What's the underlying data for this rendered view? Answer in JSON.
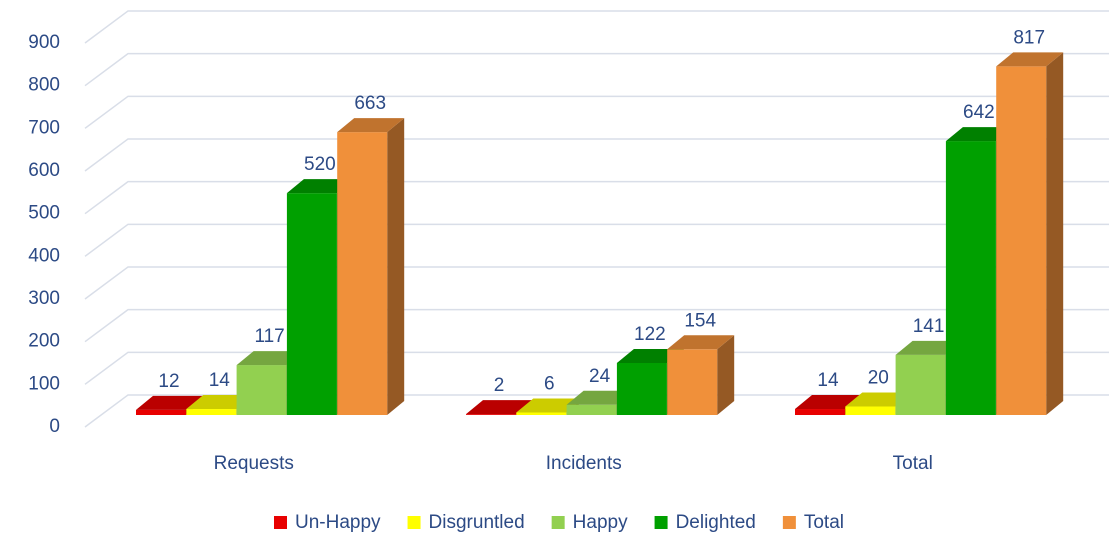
{
  "chart_data": {
    "type": "bar3d",
    "categories": [
      "Requests",
      "Incidents",
      "Total"
    ],
    "series": [
      {
        "name": "Un-Happy",
        "color": "#e80000",
        "values": [
          12,
          2,
          14
        ]
      },
      {
        "name": "Disgruntled",
        "color": "#ffff00",
        "values": [
          14,
          6,
          20
        ]
      },
      {
        "name": "Happy",
        "color": "#92d050",
        "values": [
          117,
          24,
          141
        ]
      },
      {
        "name": "Delighted",
        "color": "#00a000",
        "values": [
          520,
          122,
          642
        ]
      },
      {
        "name": "Total",
        "color": "#f0903a",
        "values": [
          663,
          154,
          817
        ]
      }
    ],
    "ylim": [
      0,
      900
    ],
    "yticks": [
      0,
      100,
      200,
      300,
      400,
      500,
      600,
      700,
      800,
      900
    ],
    "grid": true,
    "legend": "bottom"
  }
}
